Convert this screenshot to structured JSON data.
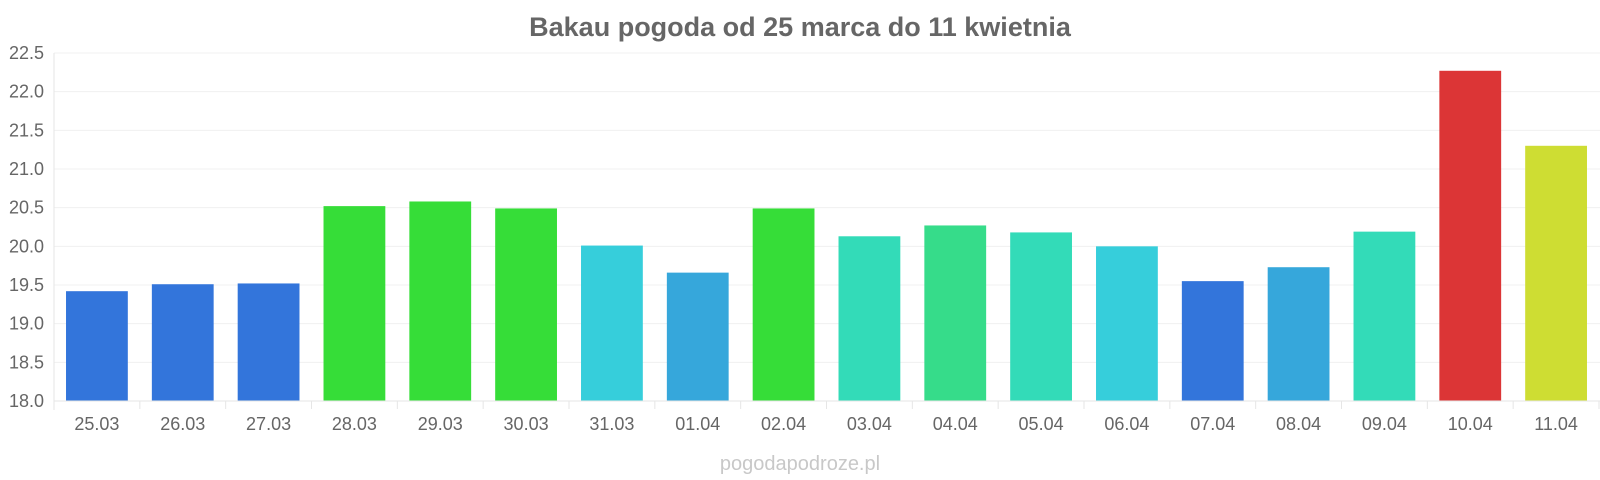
{
  "chart_data": {
    "type": "bar",
    "title": "Bakau pogoda od 25 marca do 11 kwietnia",
    "xlabel": "",
    "ylabel": "",
    "categories": [
      "25.03",
      "26.03",
      "27.03",
      "28.03",
      "29.03",
      "30.03",
      "31.03",
      "01.04",
      "02.04",
      "03.04",
      "04.04",
      "05.04",
      "06.04",
      "07.04",
      "08.04",
      "09.04",
      "10.04",
      "11.04"
    ],
    "values": [
      19.42,
      19.51,
      19.52,
      20.52,
      20.58,
      20.49,
      20.01,
      19.66,
      20.49,
      20.13,
      20.27,
      20.18,
      20.0,
      19.55,
      19.73,
      20.19,
      22.27,
      21.3
    ],
    "colors": [
      "#3375db",
      "#3375db",
      "#3375db",
      "#36dd38",
      "#36dd38",
      "#36dd38",
      "#36cedb",
      "#36a7db",
      "#36dd38",
      "#33dbb8",
      "#36dc8a",
      "#33dbb8",
      "#36cedb",
      "#3375db",
      "#36a7db",
      "#33dbb8",
      "#dc3536",
      "#cedd33"
    ],
    "ylim": [
      18.0,
      22.5
    ],
    "yticks": [
      "18.0",
      "18.5",
      "19.0",
      "19.5",
      "20.0",
      "20.5",
      "21.0",
      "21.5",
      "22.0",
      "22.5"
    ],
    "grid": true,
    "legend": "none"
  },
  "watermark": "pogodapodroze.pl"
}
